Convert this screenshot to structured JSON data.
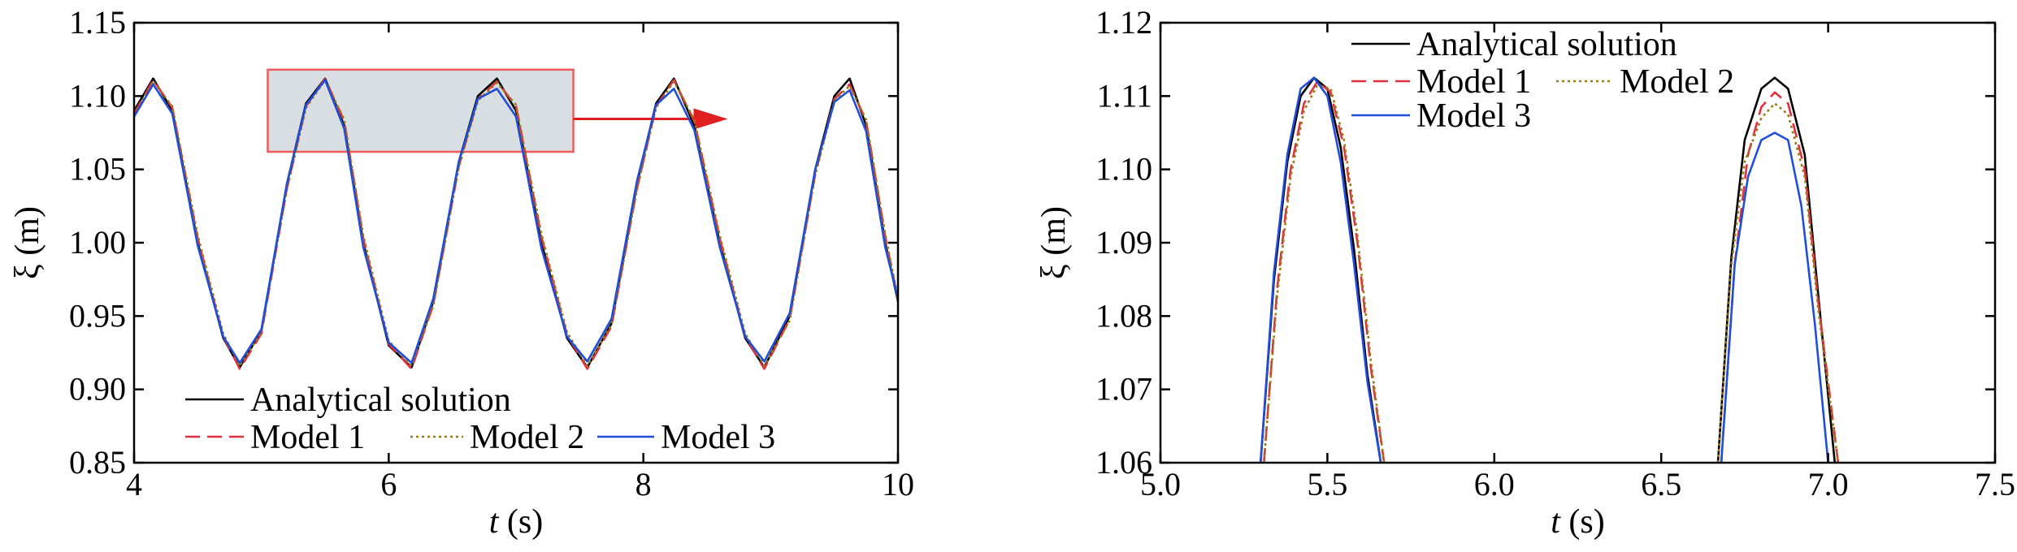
{
  "chart_data": [
    {
      "type": "line",
      "xlabel_var": "t",
      "xlabel_unit": " (s)",
      "ylabel": "ξ (m)",
      "xlim": [
        4,
        10
      ],
      "ylim": [
        0.85,
        1.15
      ],
      "x_ticks": [
        "4",
        "6",
        "8",
        "10"
      ],
      "y_ticks": [
        "0.85",
        "0.90",
        "0.95",
        "1.00",
        "1.05",
        "1.10",
        "1.15"
      ],
      "legend_placement": "bottom-left",
      "highlight_box": {
        "x": [
          5.05,
          7.45
        ],
        "y": [
          1.062,
          1.118
        ]
      },
      "series": [
        {
          "name": "Analytical solution",
          "color": "#000000",
          "style": "solid",
          "x": [
            4.0,
            4.15,
            4.3,
            4.5,
            4.7,
            4.83,
            5.0,
            5.2,
            5.35,
            5.5,
            5.65,
            5.8,
            6.0,
            6.18,
            6.35,
            6.55,
            6.7,
            6.85,
            7.0,
            7.2,
            7.4,
            7.56,
            7.75,
            7.95,
            8.1,
            8.24,
            8.4,
            8.6,
            8.8,
            8.95,
            9.15,
            9.35,
            9.5,
            9.62,
            9.75,
            9.9,
            10.0
          ],
          "y": [
            1.09,
            1.112,
            1.09,
            1.0,
            0.935,
            0.915,
            0.94,
            1.04,
            1.095,
            1.112,
            1.08,
            1.0,
            0.93,
            0.915,
            0.96,
            1.055,
            1.1,
            1.112,
            1.09,
            1.0,
            0.935,
            0.915,
            0.945,
            1.04,
            1.095,
            1.112,
            1.08,
            1.0,
            0.935,
            0.915,
            0.95,
            1.05,
            1.1,
            1.112,
            1.08,
            1.0,
            0.96
          ]
        },
        {
          "name": "Model 1",
          "color": "#e03040",
          "style": "dashed",
          "x": [
            4.0,
            4.15,
            4.3,
            4.5,
            4.7,
            4.83,
            5.0,
            5.2,
            5.35,
            5.5,
            5.65,
            5.8,
            6.0,
            6.18,
            6.35,
            6.55,
            6.7,
            6.85,
            7.0,
            7.2,
            7.4,
            7.56,
            7.75,
            7.95,
            8.1,
            8.24,
            8.4,
            8.6,
            8.8,
            8.95,
            9.15,
            9.35,
            9.5,
            9.62,
            9.75,
            9.9,
            10.0
          ],
          "y": [
            1.088,
            1.111,
            1.092,
            1.003,
            0.936,
            0.914,
            0.938,
            1.037,
            1.093,
            1.112,
            1.083,
            1.003,
            0.931,
            0.914,
            0.958,
            1.052,
            1.098,
            1.11,
            1.093,
            1.004,
            0.937,
            0.914,
            0.943,
            1.037,
            1.093,
            1.111,
            1.083,
            1.003,
            0.936,
            0.914,
            0.948,
            1.047,
            1.098,
            1.108,
            1.083,
            1.004,
            0.961
          ]
        },
        {
          "name": "Model 2",
          "color": "#9a7a10",
          "style": "dotted",
          "x": [
            4.0,
            4.15,
            4.3,
            4.5,
            4.7,
            4.83,
            5.0,
            5.2,
            5.35,
            5.5,
            5.65,
            5.8,
            6.0,
            6.18,
            6.35,
            6.55,
            6.7,
            6.85,
            7.0,
            7.2,
            7.4,
            7.56,
            7.75,
            7.95,
            8.1,
            8.24,
            8.4,
            8.6,
            8.8,
            8.95,
            9.15,
            9.35,
            9.5,
            9.62,
            9.75,
            9.9,
            10.0
          ],
          "y": [
            1.087,
            1.11,
            1.093,
            1.005,
            0.938,
            0.916,
            0.939,
            1.036,
            1.092,
            1.111,
            1.084,
            1.005,
            0.933,
            0.916,
            0.957,
            1.051,
            1.097,
            1.109,
            1.094,
            1.006,
            0.939,
            0.916,
            0.944,
            1.036,
            1.092,
            1.11,
            1.084,
            1.005,
            0.938,
            0.916,
            0.947,
            1.046,
            1.097,
            1.107,
            1.084,
            1.006,
            0.962
          ]
        },
        {
          "name": "Model 3",
          "color": "#1f4fd8",
          "style": "solid",
          "x": [
            4.0,
            4.15,
            4.3,
            4.5,
            4.7,
            4.83,
            5.0,
            5.2,
            5.35,
            5.5,
            5.65,
            5.8,
            6.0,
            6.18,
            6.35,
            6.55,
            6.7,
            6.85,
            7.0,
            7.2,
            7.4,
            7.56,
            7.75,
            7.95,
            8.1,
            8.24,
            8.4,
            8.6,
            8.8,
            8.95,
            9.15,
            9.35,
            9.5,
            9.62,
            9.75,
            9.9,
            10.0
          ],
          "y": [
            1.086,
            1.108,
            1.088,
            0.998,
            0.936,
            0.918,
            0.941,
            1.04,
            1.094,
            1.111,
            1.078,
            0.997,
            0.932,
            0.918,
            0.962,
            1.055,
            1.098,
            1.105,
            1.086,
            0.996,
            0.936,
            0.919,
            0.948,
            1.042,
            1.094,
            1.105,
            1.077,
            0.997,
            0.936,
            0.919,
            0.952,
            1.05,
            1.096,
            1.104,
            1.076,
            0.997,
            0.962
          ]
        }
      ]
    },
    {
      "type": "line",
      "xlabel_var": "t",
      "xlabel_unit": " (s)",
      "ylabel": "ξ (m)",
      "xlim": [
        5.0,
        7.5
      ],
      "ylim": [
        1.06,
        1.12
      ],
      "x_ticks": [
        "5.0",
        "5.5",
        "6.0",
        "6.5",
        "7.0",
        "7.5"
      ],
      "y_ticks": [
        "1.06",
        "1.07",
        "1.08",
        "1.09",
        "1.10",
        "1.11",
        "1.12"
      ],
      "legend_placement": "top-left",
      "series": [
        {
          "name": "Analytical solution",
          "color": "#000000",
          "style": "solid",
          "x": [
            5.3,
            5.34,
            5.38,
            5.42,
            5.46,
            5.5,
            5.54,
            5.58,
            5.62,
            5.66,
            null,
            6.67,
            6.71,
            6.75,
            6.8,
            6.84,
            6.88,
            6.93,
            6.97,
            7.02
          ],
          "y": [
            1.06,
            1.085,
            1.101,
            1.11,
            1.1125,
            1.111,
            1.103,
            1.089,
            1.072,
            1.06,
            null,
            1.06,
            1.088,
            1.104,
            1.111,
            1.1125,
            1.111,
            1.102,
            1.083,
            1.06
          ]
        },
        {
          "name": "Model 1",
          "color": "#e03040",
          "style": "dashed",
          "x": [
            5.31,
            5.35,
            5.39,
            5.43,
            5.47,
            5.51,
            5.55,
            5.59,
            5.63,
            5.67,
            null,
            6.68,
            6.72,
            6.76,
            6.8,
            6.84,
            6.88,
            6.93,
            6.97,
            7.03
          ],
          "y": [
            1.06,
            1.084,
            1.1,
            1.109,
            1.112,
            1.1105,
            1.103,
            1.09,
            1.073,
            1.06,
            null,
            1.06,
            1.087,
            1.102,
            1.1085,
            1.1105,
            1.109,
            1.1,
            1.082,
            1.06
          ]
        },
        {
          "name": "Model 2",
          "color": "#9a7a10",
          "style": "dotted",
          "x": [
            5.31,
            5.35,
            5.39,
            5.43,
            5.47,
            5.51,
            5.55,
            5.59,
            5.63,
            5.67,
            null,
            6.67,
            6.71,
            6.75,
            6.8,
            6.84,
            6.88,
            6.93,
            6.97,
            7.03
          ],
          "y": [
            1.06,
            1.083,
            1.099,
            1.108,
            1.1115,
            1.111,
            1.104,
            1.091,
            1.074,
            1.06,
            null,
            1.06,
            1.087,
            1.101,
            1.107,
            1.109,
            1.1075,
            1.099,
            1.081,
            1.06
          ]
        },
        {
          "name": "Model 3",
          "color": "#1f4fd8",
          "style": "solid",
          "x": [
            5.3,
            5.34,
            5.38,
            5.42,
            5.46,
            5.5,
            5.54,
            5.58,
            5.62,
            5.66,
            null,
            6.68,
            6.72,
            6.76,
            6.8,
            6.84,
            6.88,
            6.92,
            6.96,
            7.0
          ],
          "y": [
            1.06,
            1.086,
            1.102,
            1.111,
            1.1125,
            1.11,
            1.101,
            1.087,
            1.071,
            1.06,
            null,
            1.06,
            1.087,
            1.099,
            1.104,
            1.105,
            1.104,
            1.095,
            1.079,
            1.06
          ]
        }
      ]
    }
  ]
}
